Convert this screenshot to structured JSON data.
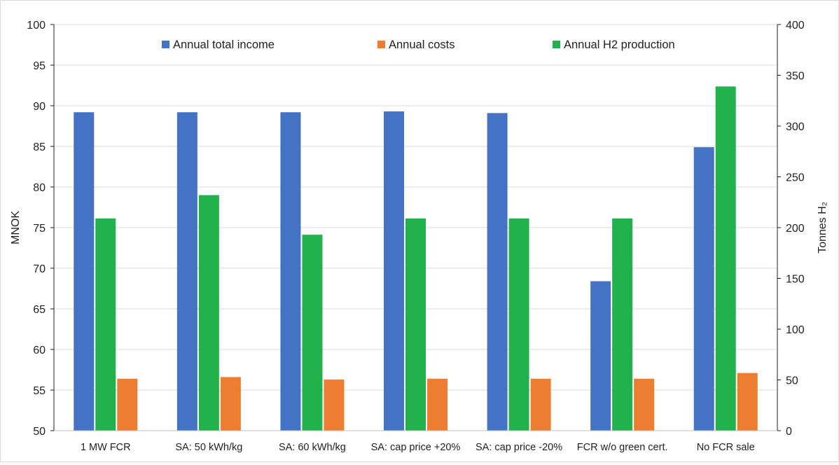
{
  "chart_data": {
    "type": "bar",
    "categories": [
      "1 MW FCR",
      "SA: 50 kWh/kg",
      "SA: 60 kWh/kg",
      "SA: cap price +20%",
      "SA: cap price -20%",
      "FCR w/o green cert.",
      "No FCR sale"
    ],
    "series": [
      {
        "name": "Annual total income",
        "axis": "left",
        "color": "#4472C4",
        "values": [
          89.2,
          89.2,
          89.2,
          89.3,
          89.1,
          68.4,
          84.9
        ]
      },
      {
        "name": "Annual H2 production",
        "axis": "right",
        "color": "#22B14C",
        "values": [
          209,
          232,
          193,
          209,
          209,
          209,
          339
        ]
      },
      {
        "name": "Annual costs",
        "axis": "left",
        "color": "#ED7D31",
        "values": [
          56.4,
          56.6,
          56.3,
          56.4,
          56.4,
          56.4,
          57.1
        ]
      }
    ],
    "legend": {
      "position": "top-inside",
      "entries": [
        {
          "label": "Annual total income",
          "color": "#4472C4"
        },
        {
          "label": "Annual costs",
          "color": "#ED7D31"
        },
        {
          "label": "Annual H2 production",
          "color": "#22B14C"
        }
      ]
    },
    "ylabel": "MNOK",
    "y2label": "Tonnes H₂",
    "xlabel": "",
    "ylim": [
      50,
      100
    ],
    "y2lim": [
      0,
      400
    ],
    "yticks": [
      "50",
      "55",
      "60",
      "65",
      "70",
      "75",
      "80",
      "85",
      "90",
      "95",
      "100"
    ],
    "y2ticks": [
      "0",
      "50",
      "100",
      "150",
      "200",
      "250",
      "300",
      "350",
      "400"
    ],
    "grid": true
  }
}
